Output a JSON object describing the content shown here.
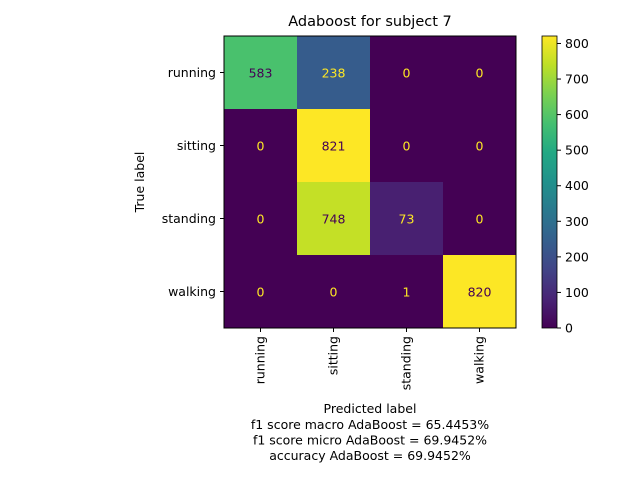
{
  "chart_data": {
    "type": "heatmap",
    "title": "Adaboost for subject 7",
    "xlabel": "Predicted label",
    "ylabel": "True label",
    "x_categories": [
      "running",
      "sitting",
      "standing",
      "walking"
    ],
    "y_categories": [
      "running",
      "sitting",
      "standing",
      "walking"
    ],
    "values": [
      [
        583,
        238,
        0,
        0
      ],
      [
        0,
        821,
        0,
        0
      ],
      [
        0,
        748,
        73,
        0
      ],
      [
        0,
        0,
        1,
        820
      ]
    ],
    "colormap": "viridis",
    "colorbar": {
      "range": [
        0,
        821
      ],
      "ticks": [
        0,
        100,
        200,
        300,
        400,
        500,
        600,
        700,
        800
      ]
    },
    "annotation_colors": {
      "dark_cell_text": "#fde725",
      "light_cell_text": "#440154"
    },
    "captions": [
      "f1 score macro AdaBoost = 65.4453%",
      "f1 score micro AdaBoost = 69.9452%",
      "accuracy AdaBoost = 69.9452%"
    ]
  }
}
